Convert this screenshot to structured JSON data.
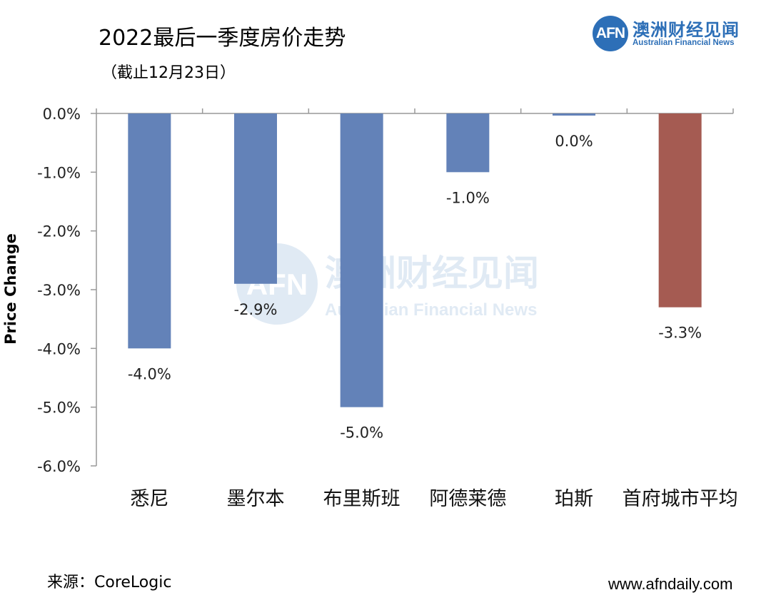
{
  "header": {
    "title": "2022最后一季度房价走势",
    "subtitle": "（截止12月23日）"
  },
  "logo": {
    "mark": "AFN",
    "name_cn": "澳洲财经见闻",
    "name_en": "Australian Financial News"
  },
  "watermark": {
    "mark": "AFN",
    "name_cn": "澳洲财经见闻",
    "name_en": "Australian Financial News"
  },
  "footer": {
    "source": "来源：CoreLogic",
    "website": "www.afndaily.com"
  },
  "colors": {
    "bar_default": "#6382b8",
    "bar_highlight": "#a55b52",
    "axis": "#999999",
    "brand": "#2d6fb7"
  },
  "chart_data": {
    "type": "bar",
    "title": "2022最后一季度房价走势",
    "xlabel": "",
    "ylabel": "Price Change",
    "ylim": [
      -6.0,
      0.0
    ],
    "yticks": [
      0.0,
      -1.0,
      -2.0,
      -3.0,
      -4.0,
      -5.0,
      -6.0
    ],
    "ytick_labels": [
      "0.0%",
      "-1.0%",
      "-2.0%",
      "-3.0%",
      "-4.0%",
      "-5.0%",
      "-6.0%"
    ],
    "categories": [
      "悉尼",
      "墨尔本",
      "布里斯班",
      "阿德莱德",
      "珀斯",
      "首府城市平均"
    ],
    "values": [
      -4.0,
      -2.9,
      -5.0,
      -1.0,
      0.0,
      -3.3
    ],
    "data_labels": [
      "-4.0%",
      "-2.9%",
      "-5.0%",
      "-1.0%",
      "0.0%",
      "-3.3%"
    ],
    "highlight_index": 5,
    "grid": false
  }
}
